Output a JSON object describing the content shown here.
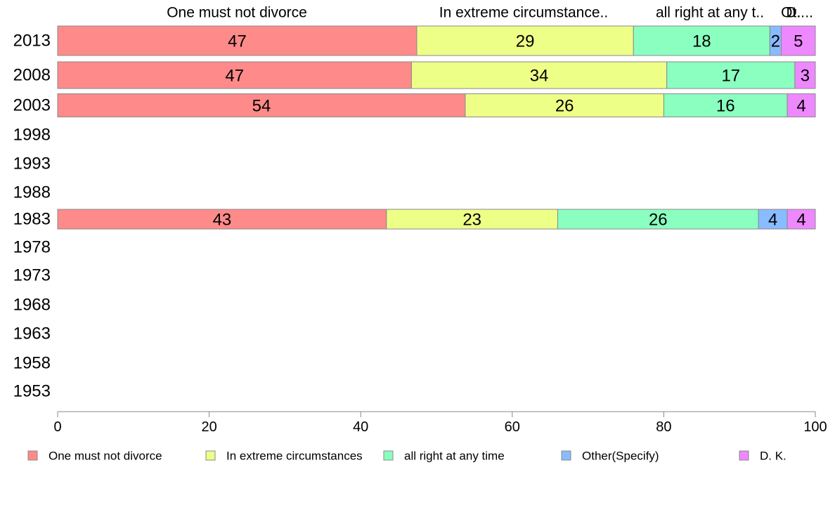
{
  "chart_data": {
    "type": "bar",
    "orientation": "horizontal",
    "stacked": true,
    "title": "",
    "xlabel": "",
    "ylabel": "",
    "xlim": [
      0,
      100
    ],
    "x_ticks": [
      "0",
      "20",
      "40",
      "60",
      "80",
      "100"
    ],
    "categories": [
      "2013",
      "2008",
      "2003",
      "1998",
      "1993",
      "1988",
      "1983",
      "1978",
      "1973",
      "1968",
      "1963",
      "1958",
      "1953"
    ],
    "series": [
      {
        "name": "One must not divorce",
        "color": "#ff8a8a",
        "values": [
          47.4,
          46.7,
          53.8,
          null,
          null,
          null,
          43.4,
          null,
          null,
          null,
          null,
          null,
          null
        ],
        "labels": [
          "47",
          "47",
          "54",
          "",
          "",
          "",
          "43",
          "",
          "",
          "",
          "",
          "",
          ""
        ]
      },
      {
        "name": "In extreme circumstances",
        "color": "#eeff88",
        "values": [
          28.6,
          33.7,
          26.2,
          null,
          null,
          null,
          22.6,
          null,
          null,
          null,
          null,
          null,
          null
        ],
        "labels": [
          "29",
          "34",
          "26",
          "",
          "",
          "",
          "23",
          "",
          "",
          "",
          "",
          "",
          ""
        ]
      },
      {
        "name": "all right at any time",
        "color": "#8affc0",
        "values": [
          18.0,
          16.9,
          16.3,
          null,
          null,
          null,
          26.5,
          null,
          null,
          null,
          null,
          null,
          null
        ],
        "labels": [
          "18",
          "17",
          "16",
          "",
          "",
          "",
          "26",
          "",
          "",
          "",
          "",
          "",
          ""
        ]
      },
      {
        "name": "Other(Specify)",
        "color": "#88bbff",
        "values": [
          1.5,
          0,
          0,
          null,
          null,
          null,
          3.8,
          null,
          null,
          null,
          null,
          null,
          null
        ],
        "labels": [
          "2",
          "",
          "",
          "",
          "",
          "",
          "4",
          "",
          "",
          "",
          "",
          "",
          ""
        ]
      },
      {
        "name": "D. K.",
        "color": "#ee88ff",
        "values": [
          4.5,
          2.7,
          3.7,
          null,
          null,
          null,
          3.7,
          null,
          null,
          null,
          null,
          null,
          null
        ],
        "labels": [
          "5",
          "3",
          "4",
          "",
          "",
          "",
          "4",
          "",
          "",
          "",
          "",
          "",
          ""
        ]
      }
    ],
    "top_labels": [
      "One must not divorce",
      "In extreme circumstance..",
      "all right at any t..",
      "Ot..",
      "D. .."
    ],
    "legend": {
      "position": "bottom",
      "entries": [
        "One must not divorce",
        "In extreme circumstances",
        "all right at any time",
        "Other(Specify)",
        "D. K."
      ]
    }
  }
}
